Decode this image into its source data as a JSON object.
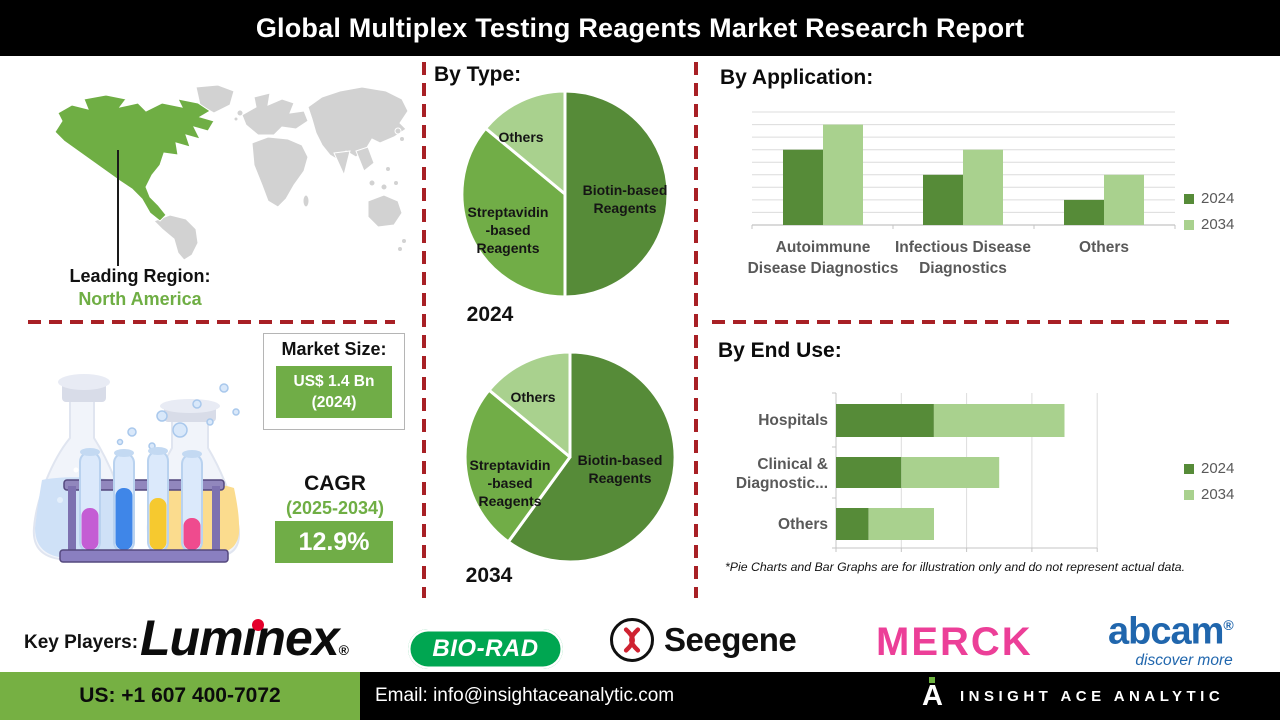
{
  "header": {
    "title": "Global Multiplex Testing Reagents Market Research Report"
  },
  "map": {
    "leading_region_label": "Leading Region:",
    "leading_region_value": "North America"
  },
  "market_size": {
    "label": "Market Size:",
    "value": "US$ 1.4 Bn",
    "year": "(2024)"
  },
  "cagr": {
    "label": "CAGR",
    "period": "(2025-2034)",
    "value": "12.9%"
  },
  "sections": {
    "by_type": "By Type:",
    "by_application": "By Application:",
    "by_end_use": "By End Use:"
  },
  "footnote": "*Pie Charts and Bar Graphs are for illustration only and do not represent actual data.",
  "key_players": {
    "label": "Key Players:",
    "luminex_text": "Lumınex",
    "reg_mark": "®",
    "bio_rad": "BIO-RAD",
    "seegene": "Seegene",
    "merck": "MERCK",
    "abcam": "abcam",
    "abcam_reg": "®",
    "abcam_tagline": "discover more"
  },
  "footer": {
    "phone": "US: +1 607 400-7072",
    "email": "Email: info@insightaceanalytic.com",
    "brand": "INSIGHT ACE ANALYTIC"
  },
  "colors": {
    "dark_green": "#568b38",
    "mid_green": "#71ad47",
    "light_green": "#a9d18e",
    "map_green": "#6fae44",
    "map_gray": "#d2d2d2",
    "dash_red": "#a82025",
    "footer_green": "#76b043",
    "biorad_green": "#00a651",
    "merck_pink": "#ec3f98",
    "abcam_blue": "#2066ad",
    "seegene_red": "#cf2231",
    "luminex_dot_red": "#e4002b"
  },
  "chart_data": [
    {
      "id": "pie_2024",
      "type": "pie",
      "year": "2024",
      "title": "By Type: 2024",
      "slices": [
        {
          "label": "Biotin-based Reagents",
          "lines": [
            "Biotin-based",
            "Reagents"
          ],
          "value": 50,
          "color": "#568b38"
        },
        {
          "label": "Streptavidin-based Reagents",
          "lines": [
            "Streptavidin",
            "-based",
            "Reagents"
          ],
          "value": 36,
          "color": "#71ad47"
        },
        {
          "label": "Others",
          "lines": [
            "Others"
          ],
          "value": 14,
          "color": "#a9d18e"
        }
      ]
    },
    {
      "id": "pie_2034",
      "type": "pie",
      "year": "2034",
      "title": "By Type: 2034",
      "slices": [
        {
          "label": "Biotin-based Reagents",
          "lines": [
            "Biotin-based",
            "Reagents"
          ],
          "value": 60,
          "color": "#568b38"
        },
        {
          "label": "Streptavidin-based Reagents",
          "lines": [
            "Streptavidin",
            "-based",
            "Reagents"
          ],
          "value": 26,
          "color": "#71ad47"
        },
        {
          "label": "Others",
          "lines": [
            "Others"
          ],
          "value": 14,
          "color": "#a9d18e"
        }
      ]
    },
    {
      "id": "by_application",
      "type": "bar",
      "title": "By Application:",
      "categories": [
        "Autoimmune Disease Diagnostics",
        "Infectious Disease Diagnostics",
        "Others"
      ],
      "category_lines": [
        [
          "Autoimmune",
          "Disease Diagnostics"
        ],
        [
          "Infectious Disease",
          "Diagnostics"
        ],
        [
          "Others"
        ]
      ],
      "series": [
        {
          "name": "2024",
          "color": "#568b38",
          "values": [
            6,
            4,
            2
          ]
        },
        {
          "name": "2034",
          "color": "#a9d18e",
          "values": [
            8,
            6,
            4
          ]
        }
      ],
      "ylim": [
        0,
        9
      ],
      "grid": true,
      "legend_position": "right"
    },
    {
      "id": "by_end_use",
      "type": "stacked-hbar",
      "title": "By End Use:",
      "categories": [
        "Hospitals",
        "Clinical & Diagnostic...",
        "Others"
      ],
      "category_lines": [
        [
          "Hospitals"
        ],
        [
          "Clinical &",
          "Diagnostic..."
        ],
        [
          "Others"
        ]
      ],
      "series": [
        {
          "name": "2024",
          "color": "#568b38",
          "values": [
            1.5,
            1,
            0.5
          ]
        },
        {
          "name": "2034",
          "color": "#a9d18e",
          "values": [
            2,
            1.5,
            1
          ]
        }
      ],
      "xlim": [
        0,
        4
      ],
      "grid": true,
      "legend_position": "right"
    }
  ]
}
